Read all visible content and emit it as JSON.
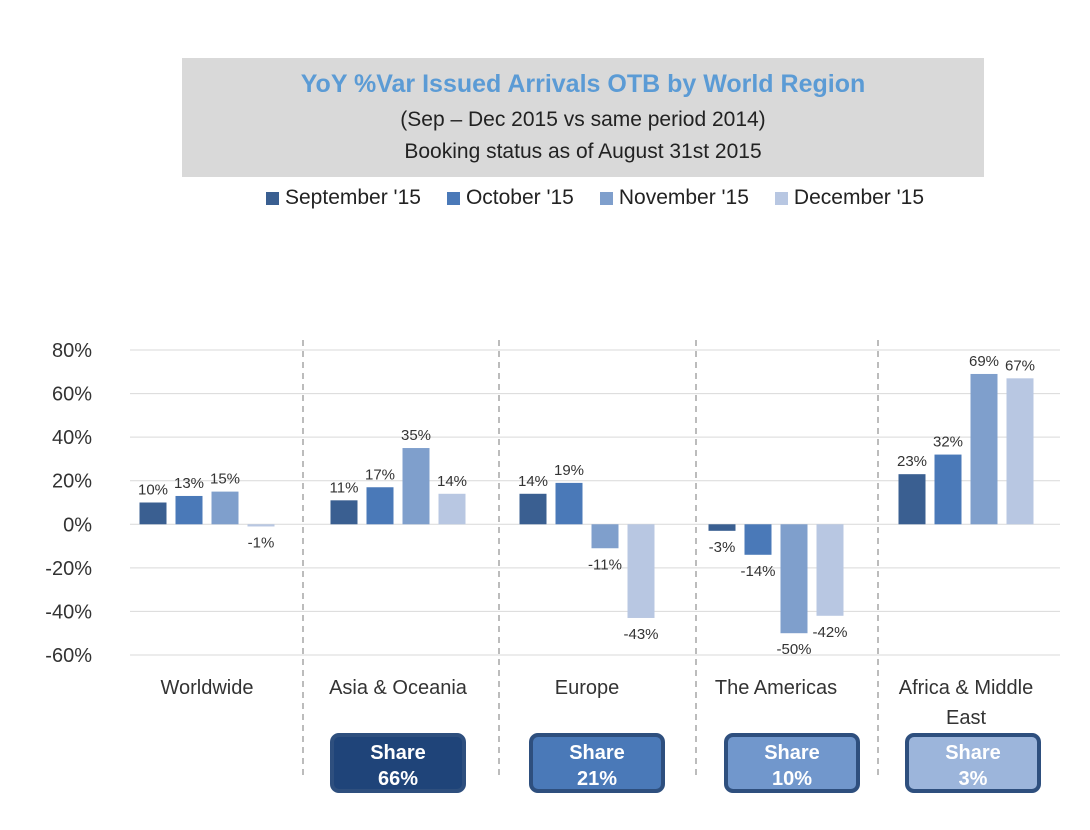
{
  "chart_data": {
    "type": "bar",
    "title": "YoY %Var Issued Arrivals OTB by World Region",
    "subtitle_lines": [
      "(Sep – Dec 2015 vs same period 2014)",
      "Booking status as of August 31st 2015"
    ],
    "categories": [
      "Worldwide",
      "Asia & Oceania",
      "Europe",
      "The Americas",
      "Africa & Middle East"
    ],
    "series": [
      {
        "name": "September '15",
        "values": [
          10,
          11,
          14,
          -3,
          23
        ],
        "color": "#3a5f91"
      },
      {
        "name": "October '15",
        "values": [
          13,
          17,
          19,
          -14,
          32
        ],
        "color": "#4a79b8"
      },
      {
        "name": "November '15",
        "values": [
          15,
          35,
          -11,
          -50,
          69
        ],
        "color": "#7f9fcc"
      },
      {
        "name": "December '15",
        "values": [
          -1,
          14,
          -43,
          -42,
          67
        ],
        "color": "#b8c7e2"
      }
    ],
    "ylim": [
      -60,
      80
    ],
    "yticks": [
      80,
      60,
      40,
      20,
      0,
      -20,
      -40,
      -60
    ],
    "ytick_labels": [
      "80%",
      "60%",
      "40%",
      "20%",
      "0%",
      "-20%",
      "-40%",
      "-60%"
    ],
    "legend_position": "top",
    "grid": true,
    "xlabel": "",
    "ylabel": ""
  },
  "shares": [
    {
      "region": "Asia & Oceania",
      "label": "Share",
      "value": "66%",
      "color": "#1f4479"
    },
    {
      "region": "Europe",
      "label": "Share",
      "value": "21%",
      "color": "#4a79b8"
    },
    {
      "region": "The Americas",
      "label": "Share",
      "value": "10%",
      "color": "#7197cc"
    },
    {
      "region": "Africa & Middle East",
      "label": "Share",
      "value": "3%",
      "color": "#9cb5db"
    }
  ]
}
